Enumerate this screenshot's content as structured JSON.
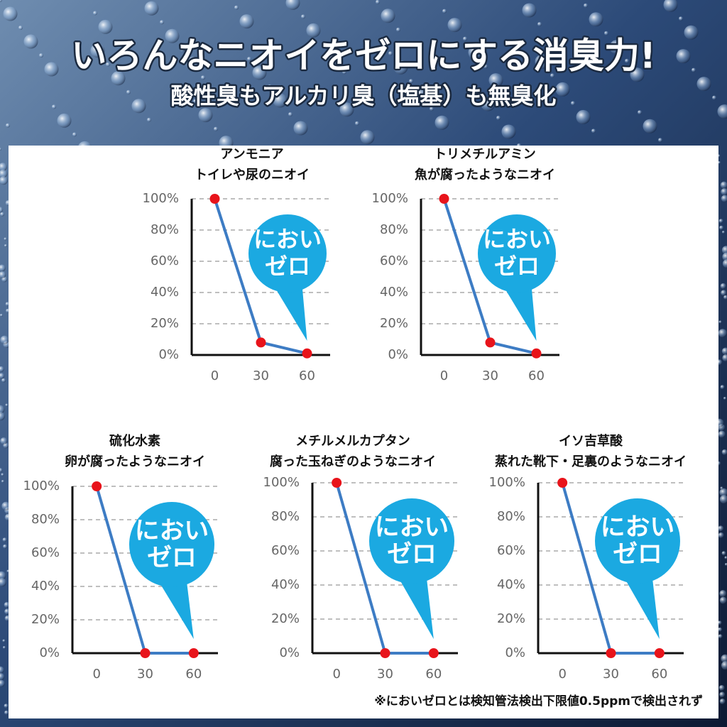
{
  "header": {
    "title": "いろんなニオイをゼロにする消臭力!",
    "subtitle": "酸性臭もアルカリ臭（塩基）も無臭化"
  },
  "chart_data": [
    {
      "type": "line",
      "title": "アンモニア",
      "subtitle": "トイレや尿のニオイ",
      "x": [
        0,
        30,
        60
      ],
      "values": [
        100,
        8,
        1
      ],
      "xlim": [
        -15,
        75
      ],
      "xticks": [
        0,
        30,
        60
      ],
      "ylim": [
        0,
        100
      ],
      "yticks": [
        {
          "value": 0,
          "label": "0%"
        },
        {
          "value": 20,
          "label": "20%"
        },
        {
          "value": 40,
          "label": "40%"
        },
        {
          "value": 60,
          "label": "60%"
        },
        {
          "value": 80,
          "label": "80%"
        },
        {
          "value": 100,
          "label": "100%"
        }
      ],
      "grid": true,
      "color": "#3d7cc4",
      "marker_color": "#e8141b",
      "annotation": [
        "におい",
        "ゼロ"
      ],
      "annotation_color": "#1ba9e1"
    },
    {
      "type": "line",
      "title": "トリメチルアミン",
      "subtitle": "魚が腐ったようなニオイ",
      "x": [
        0,
        30,
        60
      ],
      "values": [
        100,
        8,
        1
      ],
      "xlim": [
        -15,
        75
      ],
      "xticks": [
        0,
        30,
        60
      ],
      "ylim": [
        0,
        100
      ],
      "yticks": [
        {
          "value": 0,
          "label": "0%"
        },
        {
          "value": 20,
          "label": "20%"
        },
        {
          "value": 40,
          "label": "40%"
        },
        {
          "value": 60,
          "label": "60%"
        },
        {
          "value": 80,
          "label": "80%"
        },
        {
          "value": 100,
          "label": "100%"
        }
      ],
      "grid": true,
      "color": "#3d7cc4",
      "marker_color": "#e8141b",
      "annotation": [
        "におい",
        "ゼロ"
      ],
      "annotation_color": "#1ba9e1"
    },
    {
      "type": "line",
      "title": "硫化水素",
      "subtitle": "卵が腐ったようなニオイ",
      "x": [
        0,
        30,
        60
      ],
      "values": [
        100,
        0,
        0
      ],
      "xlim": [
        -15,
        75
      ],
      "xticks": [
        0,
        30,
        60
      ],
      "ylim": [
        0,
        100
      ],
      "yticks": [
        {
          "value": 0,
          "label": "0%"
        },
        {
          "value": 20,
          "label": "20%"
        },
        {
          "value": 40,
          "label": "40%"
        },
        {
          "value": 60,
          "label": "60%"
        },
        {
          "value": 80,
          "label": "80%"
        },
        {
          "value": 100,
          "label": "100%"
        }
      ],
      "grid": true,
      "color": "#3d7cc4",
      "marker_color": "#e8141b",
      "annotation": [
        "におい",
        "ゼロ"
      ],
      "annotation_color": "#1ba9e1"
    },
    {
      "type": "line",
      "title": "メチルメルカプタン",
      "subtitle": "腐った玉ねぎのようなニオイ",
      "x": [
        0,
        30,
        60
      ],
      "values": [
        100,
        0,
        0
      ],
      "xlim": [
        -15,
        75
      ],
      "xticks": [
        0,
        30,
        60
      ],
      "ylim": [
        0,
        100
      ],
      "yticks": [
        {
          "value": 0,
          "label": "0%"
        },
        {
          "value": 20,
          "label": "20%"
        },
        {
          "value": 40,
          "label": "40%"
        },
        {
          "value": 60,
          "label": "60%"
        },
        {
          "value": 80,
          "label": "80%"
        },
        {
          "value": 100,
          "label": "100%"
        }
      ],
      "grid": true,
      "color": "#3d7cc4",
      "marker_color": "#e8141b",
      "annotation": [
        "におい",
        "ゼロ"
      ],
      "annotation_color": "#1ba9e1"
    },
    {
      "type": "line",
      "title": "イソ吉草酸",
      "subtitle": "蒸れた靴下・足裏のようなニオイ",
      "x": [
        0,
        30,
        60
      ],
      "values": [
        100,
        0,
        0
      ],
      "xlim": [
        -15,
        75
      ],
      "xticks": [
        0,
        30,
        60
      ],
      "ylim": [
        0,
        100
      ],
      "yticks": [
        {
          "value": 0,
          "label": "0%"
        },
        {
          "value": 20,
          "label": "20%"
        },
        {
          "value": 40,
          "label": "40%"
        },
        {
          "value": 60,
          "label": "60%"
        },
        {
          "value": 80,
          "label": "80%"
        },
        {
          "value": 100,
          "label": "100%"
        }
      ],
      "grid": true,
      "color": "#3d7cc4",
      "marker_color": "#e8141b",
      "annotation": [
        "におい",
        "ゼロ"
      ],
      "annotation_color": "#1ba9e1"
    }
  ],
  "footnote": "※においゼロとは検知管法検出下限値0.5ppmで検出されず"
}
